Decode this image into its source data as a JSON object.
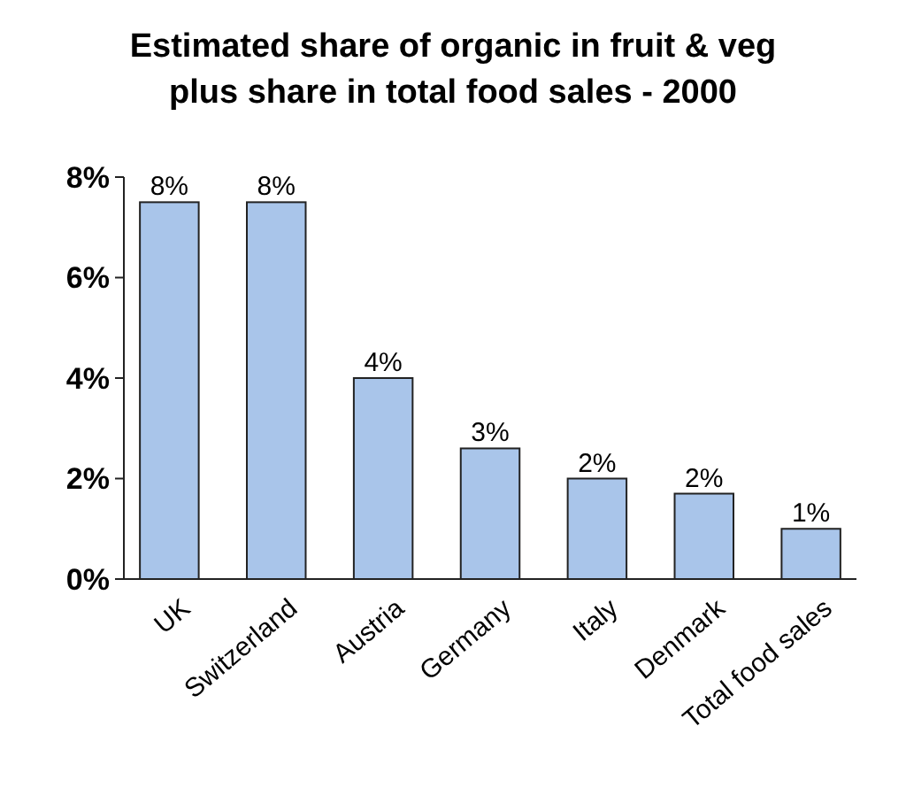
{
  "chart_data": {
    "type": "bar",
    "title": "Estimated share of organic in fruit & veg plus share in total food sales - 2000",
    "categories": [
      "UK",
      "Switzerland",
      "Austria",
      "Germany",
      "Italy",
      "Denmark",
      "Total food sales"
    ],
    "values": [
      7.5,
      7.5,
      4.0,
      2.6,
      2.0,
      1.7,
      1.0
    ],
    "value_labels": [
      "8%",
      "8%",
      "4%",
      "3%",
      "2%",
      "2%",
      "1%"
    ],
    "color": "#a9c5ea",
    "ylim": [
      0,
      8
    ],
    "yticks": [
      {
        "value": 0,
        "label": "0%"
      },
      {
        "value": 2,
        "label": "2%"
      },
      {
        "value": 4,
        "label": "4%"
      },
      {
        "value": 6,
        "label": "6%"
      },
      {
        "value": 8,
        "label": "8%"
      }
    ],
    "grid": false
  }
}
